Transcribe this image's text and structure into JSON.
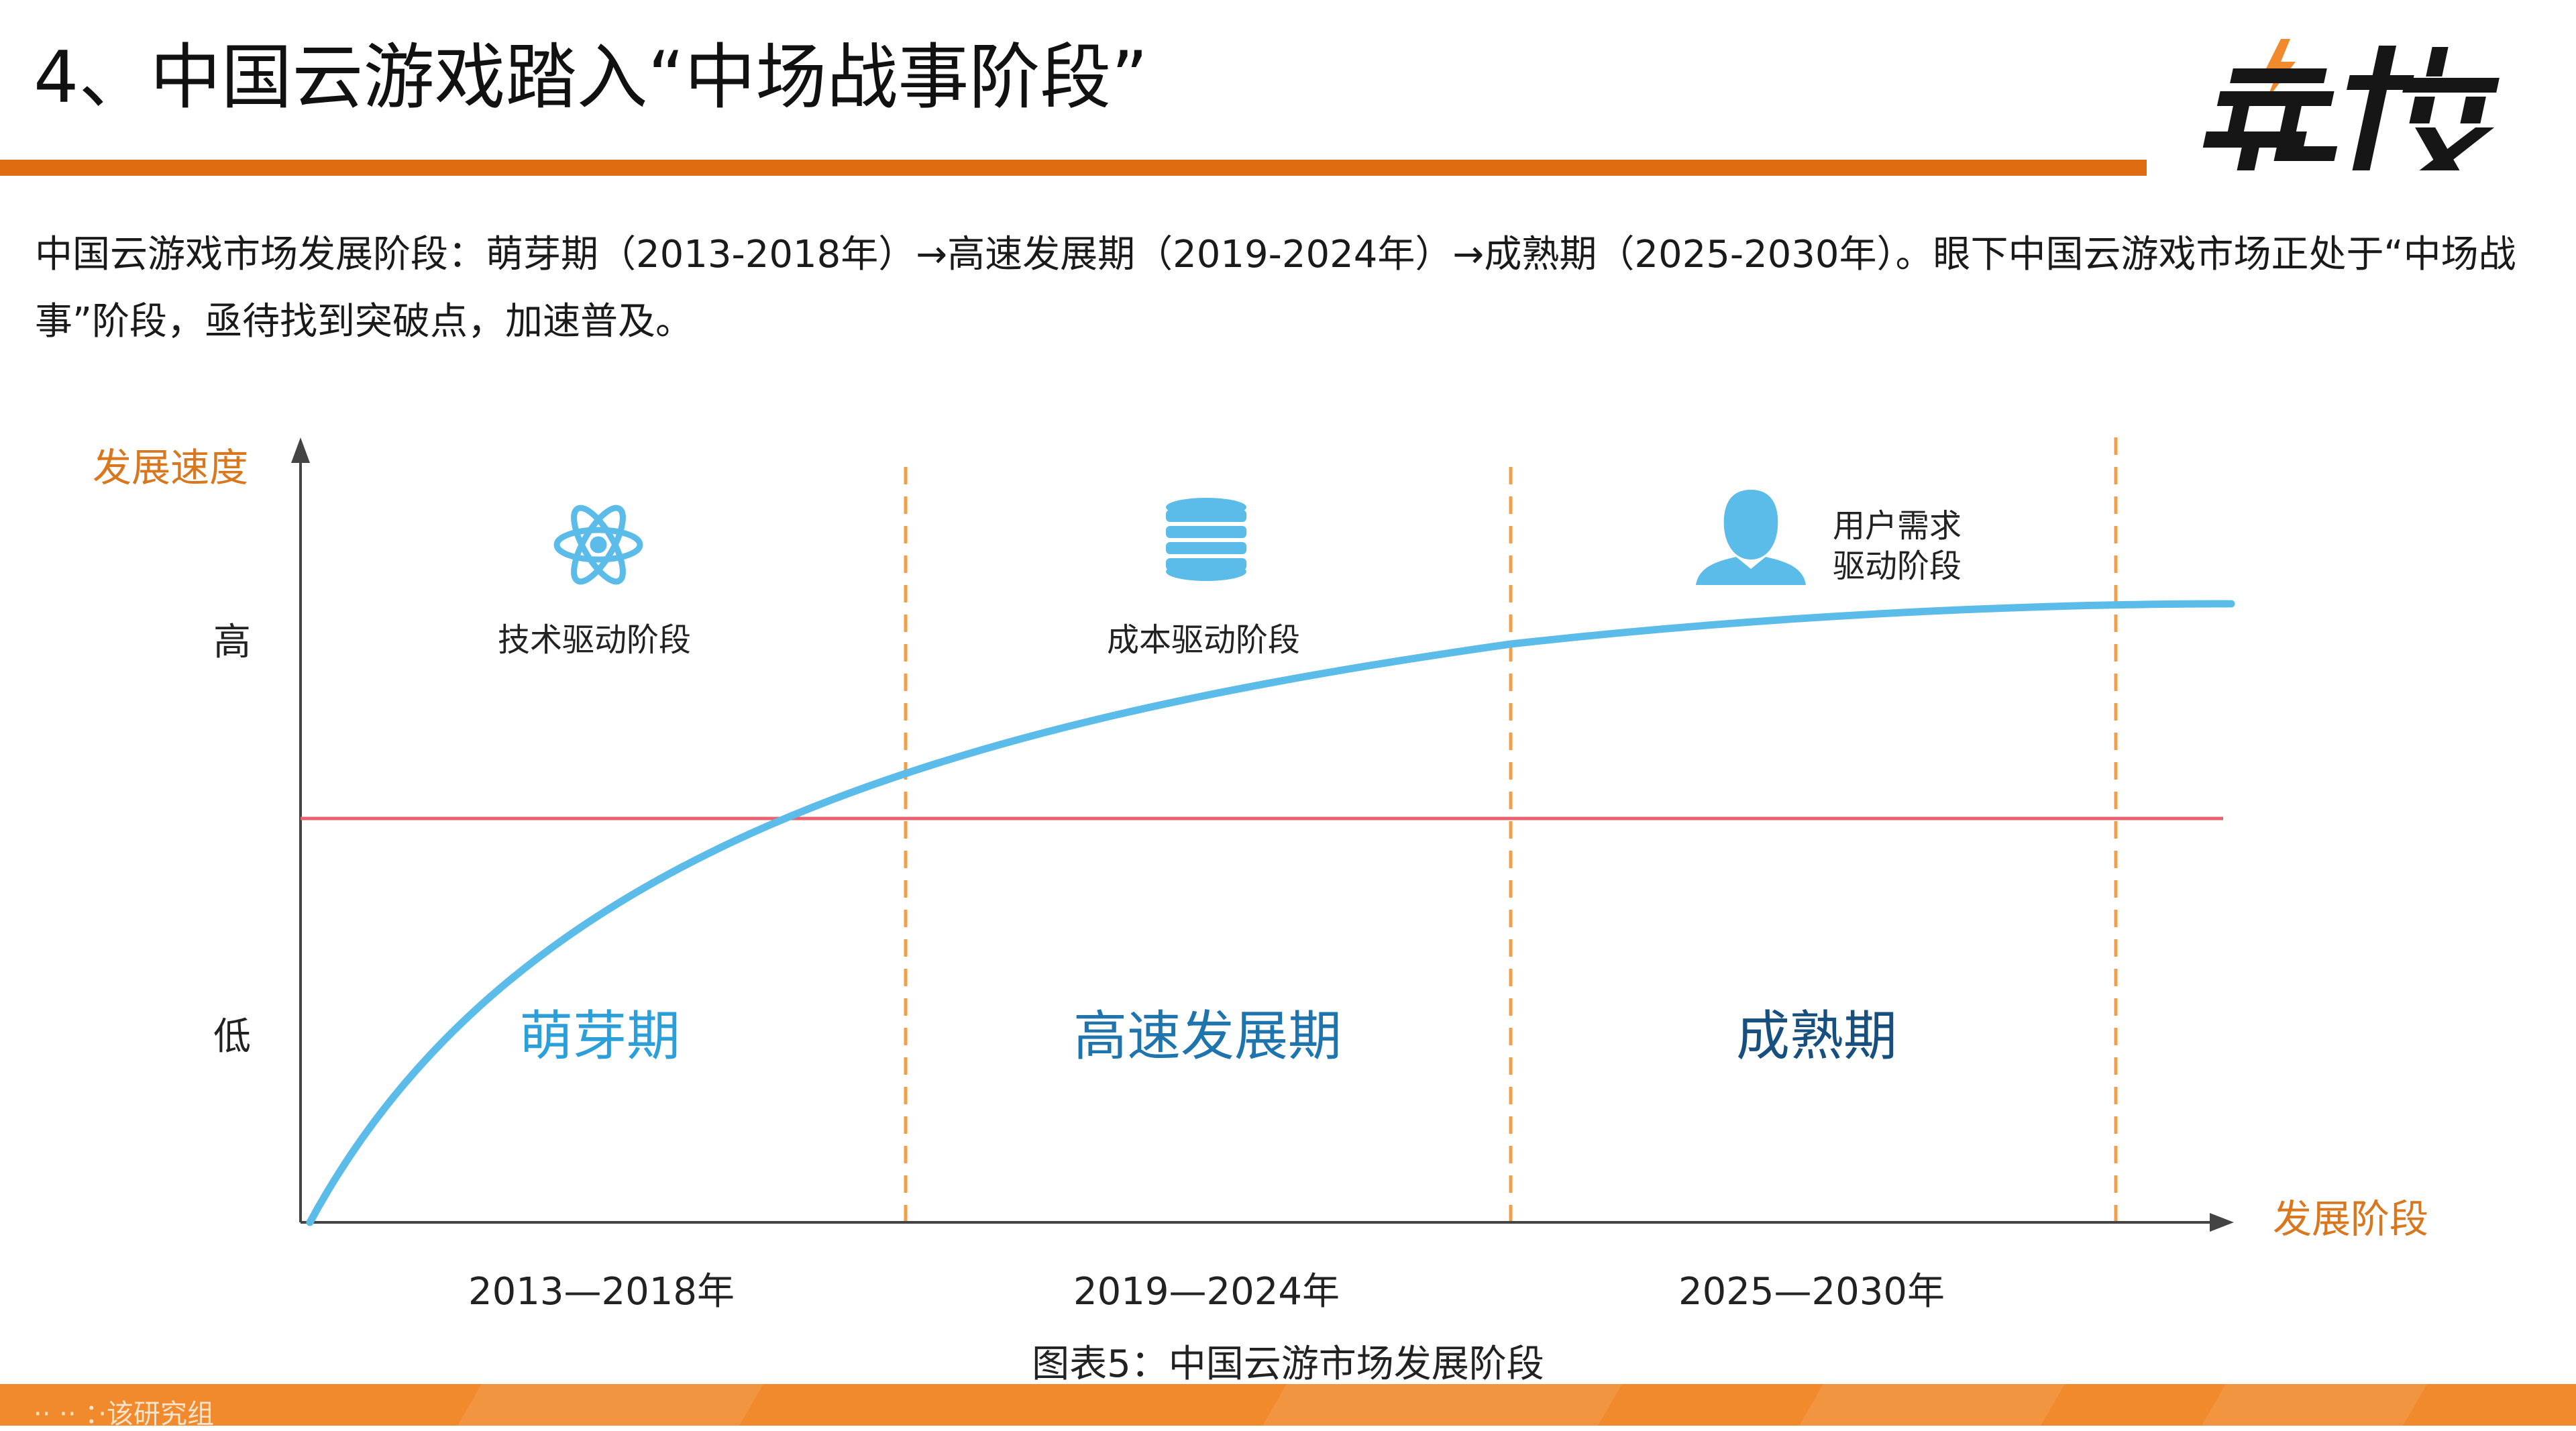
{
  "header": {
    "title": "4、中国云游戏踏入“中场战事阶段”",
    "logo_text": "竞核"
  },
  "intro": {
    "text": "中国云游戏市场发展阶段：萌芽期（2013-2018年）→高速发展期（2019-2024年）→成熟期（2025-2030年）。眼下中国云游戏市场正处于“中场战事”阶段，亟待找到突破点，加速普及。"
  },
  "diagram": {
    "y_axis_title": "发展速度",
    "x_axis_title": "发展阶段",
    "y_ticks": {
      "high": "高",
      "low": "低"
    },
    "stages": [
      {
        "label": "技术驱动阶段",
        "icon": "atom-icon",
        "phase": "萌芽期",
        "phase_color": "#2b9fd9",
        "period": "2013—2018年"
      },
      {
        "label": "成本驱动阶段",
        "icon": "database-icon",
        "phase": "高速发展期",
        "phase_color": "#1e74ad",
        "period": "2019—2024年"
      },
      {
        "label": "用户需求驱动阶段",
        "label_line1": "用户需求",
        "label_line2": "驱动阶段",
        "icon": "user-icon",
        "phase": "成熟期",
        "phase_color": "#174f7f",
        "period": "2025—2030年"
      }
    ],
    "colors": {
      "curve": "#5bbcea",
      "threshold": "#e8636f",
      "divider": "#f0a04a",
      "axis": "#444444",
      "icon": "#5bbcea",
      "accent": "#e06c12"
    },
    "caption": "图表5：中国云游市场发展阶段"
  },
  "footer": {
    "text": "·· ·· ：·该研究组"
  }
}
